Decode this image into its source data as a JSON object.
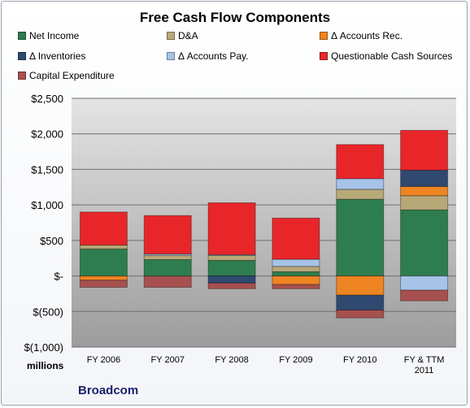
{
  "chart_data": {
    "type": "bar",
    "stacked": true,
    "title": "Free Cash Flow Components",
    "units_label": "millions",
    "company": "Broadcom",
    "categories": [
      [
        "FY 2006"
      ],
      [
        "FY 2007"
      ],
      [
        "FY 2008"
      ],
      [
        "FY 2009"
      ],
      [
        "FY 2010"
      ],
      [
        "FY & TTM",
        "2011"
      ]
    ],
    "ylim": [
      -1000,
      2500
    ],
    "yticks": [
      -1000,
      -500,
      0,
      500,
      1000,
      1500,
      2000,
      2500
    ],
    "ytick_labels": [
      "$(1,000)",
      "$(500)",
      "$-",
      "$500",
      "$1,000",
      "$1,500",
      "$2,000",
      "$2,500"
    ],
    "grid": true,
    "legend_position": "top",
    "series": [
      {
        "name": "Net Income",
        "color": "#2e7d4f",
        "values": [
          380,
          230,
          220,
          60,
          1080,
          930
        ]
      },
      {
        "name": "D&A",
        "color": "#b8a878",
        "values": [
          55,
          60,
          70,
          75,
          140,
          200
        ]
      },
      {
        "name": "Δ Accounts Rec.",
        "color": "#ee8422",
        "values": [
          -60,
          0,
          0,
          -120,
          -270,
          130
        ]
      },
      {
        "name": "Δ Inventories",
        "color": "#2f4970",
        "values": [
          0,
          0,
          -100,
          0,
          -210,
          230
        ]
      },
      {
        "name": "Δ Accounts Pay.",
        "color": "#a7c3e8",
        "values": [
          0,
          20,
          10,
          100,
          150,
          -200
        ]
      },
      {
        "name": "Questionable Cash Sources",
        "color": "#e8262a",
        "values": [
          465,
          540,
          730,
          580,
          480,
          560
        ]
      },
      {
        "name": "Capital Expenditure",
        "color": "#a85050",
        "values": [
          -100,
          -160,
          -80,
          -60,
          -110,
          -150
        ]
      }
    ]
  }
}
